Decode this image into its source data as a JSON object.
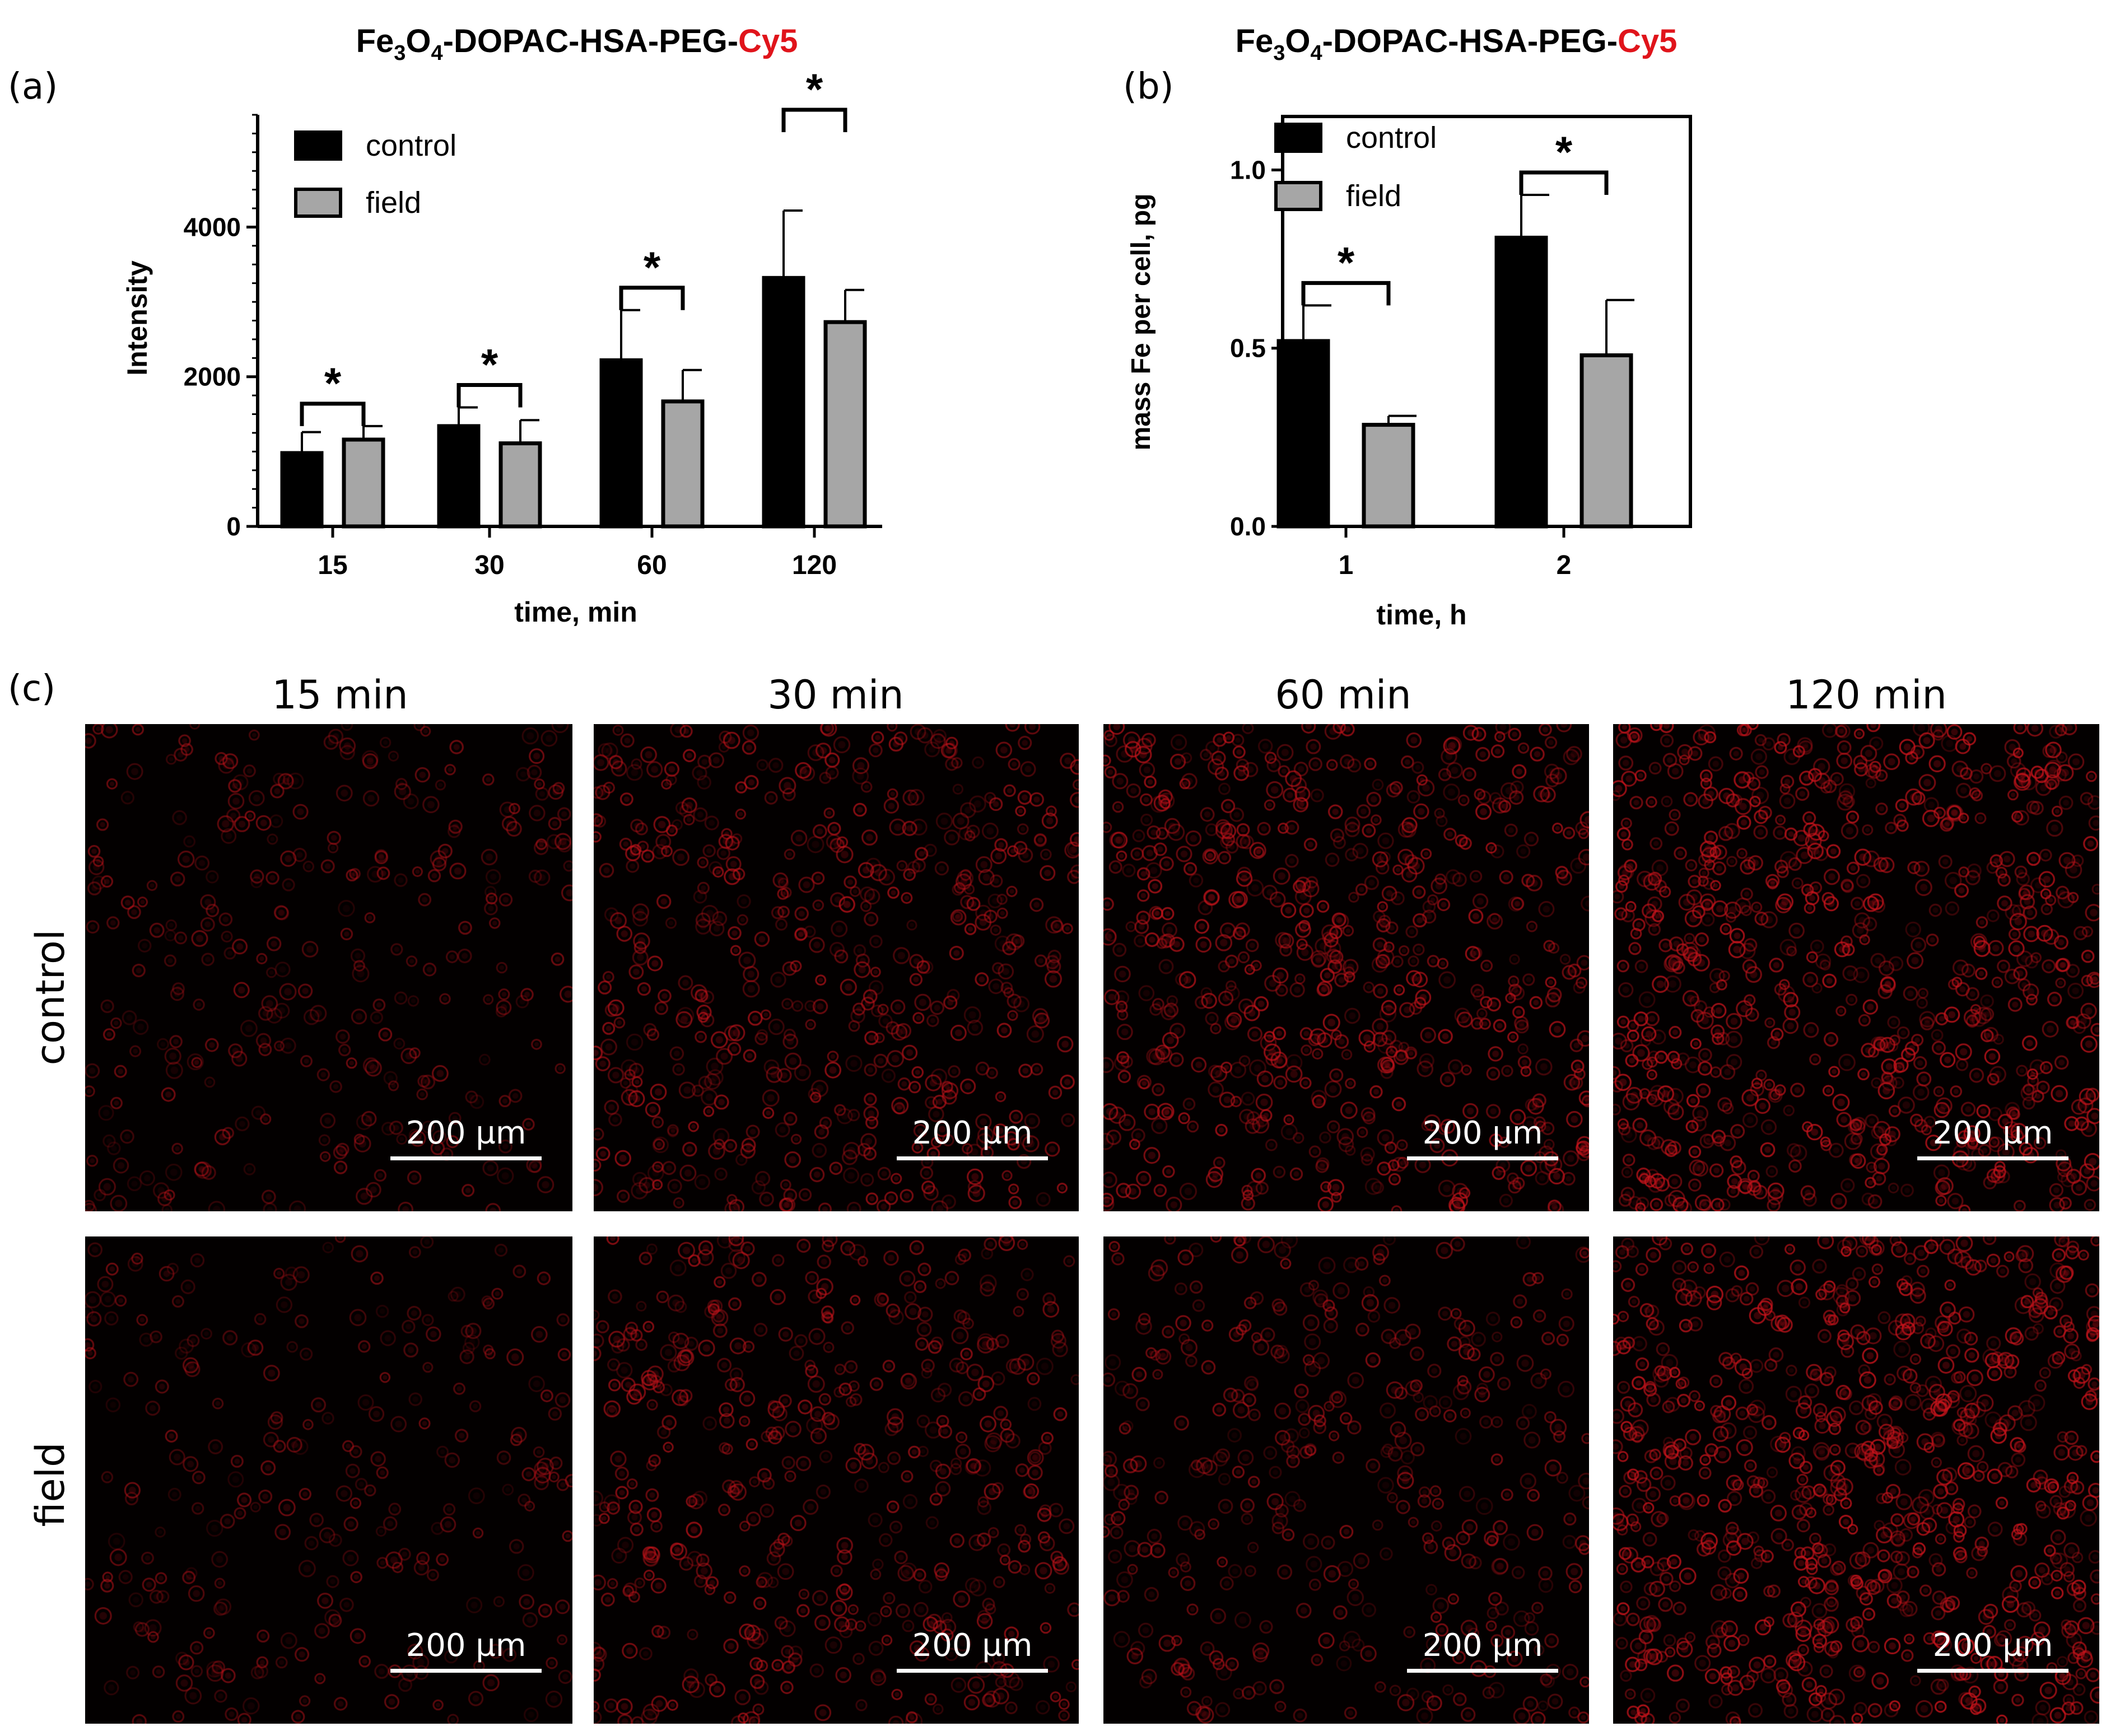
{
  "panel_labels": {
    "a": "(a)",
    "b": "(b)",
    "c": "(c)"
  },
  "title_a": {
    "pre": "Fe",
    "sub1": "3",
    "mid": "O",
    "sub2": "4",
    "post": "-DOPAC-HSA-PEG-",
    "dye": "Cy5"
  },
  "title_b": {
    "pre": "Fe",
    "sub1": "3",
    "mid": "O",
    "sub2": "4",
    "post": "-DOPAC-HSA-PEG-",
    "dye": "Cy5"
  },
  "colors": {
    "control": "#000000",
    "field": "#a6a6a6",
    "dye": "#e0141b",
    "micrograph_bg": "#030000",
    "cell": "#c0141c"
  },
  "chart_data": [
    {
      "type": "bar",
      "title": "Fe3O4-DOPAC-HSA-PEG-Cy5",
      "xlabel": "time, min",
      "ylabel": "Intensity",
      "ylim": [
        0,
        5500
      ],
      "yticks": [
        0,
        2000,
        4000
      ],
      "categories": [
        "15",
        "30",
        "60",
        "120"
      ],
      "series": [
        {
          "name": "control",
          "values": [
            980,
            1340,
            2220,
            3320
          ],
          "errors": [
            280,
            250,
            670,
            900
          ]
        },
        {
          "name": "field",
          "values": [
            1160,
            1110,
            1670,
            2730
          ],
          "errors": [
            180,
            310,
            420,
            430
          ]
        }
      ],
      "significance": [
        "*",
        "*",
        "*",
        "*"
      ],
      "legend": "top-left",
      "grid": false
    },
    {
      "type": "bar",
      "title": "Fe3O4-DOPAC-HSA-PEG-Cy5",
      "xlabel": "time, h",
      "ylabel": "mass Fe per cell, pg",
      "ylim": [
        0,
        1.15
      ],
      "yticks": [
        "0.0",
        "0.5",
        "1.0"
      ],
      "categories": [
        "1",
        "2"
      ],
      "series": [
        {
          "name": "control",
          "values": [
            0.52,
            0.81
          ],
          "errors": [
            0.1,
            0.12
          ]
        },
        {
          "name": "field",
          "values": [
            0.285,
            0.48
          ],
          "errors": [
            0.025,
            0.155
          ]
        }
      ],
      "significance": [
        "*",
        "*"
      ],
      "legend": "top-left",
      "grid": false
    }
  ],
  "micrographs": {
    "columns": [
      "15 min",
      "30 min",
      "60 min",
      "120 min"
    ],
    "rows": [
      "control",
      "field"
    ],
    "scale_bar": "200 µm",
    "density": [
      [
        0.35,
        0.6,
        0.7,
        0.85
      ],
      [
        0.3,
        0.55,
        0.45,
        0.9
      ]
    ]
  }
}
